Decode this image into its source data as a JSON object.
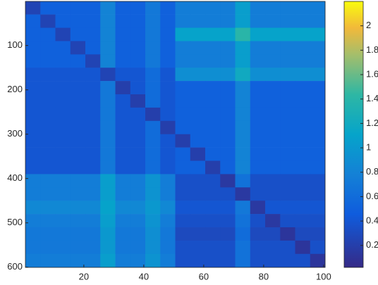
{
  "chart_data": {
    "type": "heatmap",
    "colormap": "parula",
    "x": [
      3,
      8,
      13,
      18,
      23,
      28,
      33,
      38,
      43,
      48,
      53,
      58,
      63,
      68,
      73,
      78,
      83,
      88,
      93,
      98
    ],
    "y": [
      15,
      45,
      75,
      105,
      135,
      165,
      195,
      225,
      255,
      285,
      315,
      345,
      375,
      405,
      435,
      465,
      495,
      525,
      555,
      585
    ],
    "values": [
      [
        0.25,
        0.5,
        0.5,
        0.5,
        0.5,
        0.8,
        0.5,
        0.5,
        0.7,
        0.5,
        0.75,
        0.75,
        0.75,
        0.75,
        1.05,
        0.75,
        0.75,
        0.75,
        0.75,
        0.75
      ],
      [
        0.5,
        0.25,
        0.5,
        0.5,
        0.5,
        0.8,
        0.5,
        0.5,
        0.7,
        0.5,
        0.75,
        0.75,
        0.75,
        0.75,
        1.05,
        0.75,
        0.75,
        0.75,
        0.75,
        0.75
      ],
      [
        0.5,
        0.5,
        0.25,
        0.5,
        0.5,
        0.8,
        0.5,
        0.5,
        0.7,
        0.5,
        1.1,
        1.1,
        1.1,
        1.1,
        1.4,
        1.1,
        1.1,
        1.1,
        1.1,
        1.1
      ],
      [
        0.5,
        0.5,
        0.5,
        0.25,
        0.5,
        0.8,
        0.5,
        0.5,
        0.7,
        0.5,
        0.75,
        0.75,
        0.75,
        0.75,
        1.05,
        0.75,
        0.75,
        0.75,
        0.75,
        0.75
      ],
      [
        0.5,
        0.5,
        0.5,
        0.5,
        0.25,
        0.8,
        0.5,
        0.5,
        0.7,
        0.5,
        0.75,
        0.75,
        0.75,
        0.75,
        1.05,
        0.75,
        0.75,
        0.75,
        0.75,
        0.75
      ],
      [
        0.4,
        0.4,
        0.4,
        0.4,
        0.4,
        0.25,
        0.4,
        0.4,
        0.6,
        0.4,
        0.9,
        0.9,
        0.9,
        0.9,
        1.2,
        0.9,
        0.9,
        0.9,
        0.9,
        0.9
      ],
      [
        0.4,
        0.4,
        0.4,
        0.4,
        0.4,
        0.7,
        0.2,
        0.4,
        0.6,
        0.4,
        0.5,
        0.5,
        0.5,
        0.5,
        0.8,
        0.5,
        0.5,
        0.5,
        0.5,
        0.5
      ],
      [
        0.4,
        0.4,
        0.4,
        0.4,
        0.4,
        0.7,
        0.4,
        0.2,
        0.6,
        0.4,
        0.5,
        0.5,
        0.5,
        0.5,
        0.8,
        0.5,
        0.5,
        0.5,
        0.5,
        0.5
      ],
      [
        0.4,
        0.4,
        0.4,
        0.4,
        0.4,
        0.7,
        0.4,
        0.4,
        0.2,
        0.4,
        0.5,
        0.5,
        0.5,
        0.5,
        0.8,
        0.5,
        0.5,
        0.5,
        0.5,
        0.5
      ],
      [
        0.4,
        0.4,
        0.4,
        0.4,
        0.4,
        0.7,
        0.4,
        0.4,
        0.6,
        0.2,
        0.5,
        0.5,
        0.5,
        0.5,
        0.8,
        0.5,
        0.5,
        0.5,
        0.5,
        0.5
      ],
      [
        0.4,
        0.4,
        0.4,
        0.4,
        0.4,
        0.7,
        0.4,
        0.4,
        0.6,
        0.4,
        0.2,
        0.5,
        0.5,
        0.5,
        0.8,
        0.5,
        0.5,
        0.5,
        0.5,
        0.5
      ],
      [
        0.4,
        0.4,
        0.4,
        0.4,
        0.4,
        0.7,
        0.4,
        0.4,
        0.6,
        0.4,
        0.5,
        0.2,
        0.5,
        0.5,
        0.8,
        0.5,
        0.5,
        0.5,
        0.5,
        0.5
      ],
      [
        0.4,
        0.4,
        0.4,
        0.4,
        0.4,
        0.7,
        0.4,
        0.4,
        0.6,
        0.4,
        0.5,
        0.5,
        0.2,
        0.5,
        0.8,
        0.5,
        0.5,
        0.5,
        0.5,
        0.5
      ],
      [
        0.75,
        0.75,
        0.75,
        0.75,
        0.75,
        1.05,
        0.75,
        0.75,
        0.95,
        0.75,
        0.35,
        0.35,
        0.35,
        0.15,
        0.65,
        0.35,
        0.35,
        0.35,
        0.35,
        0.35
      ],
      [
        0.75,
        0.75,
        0.75,
        0.75,
        0.75,
        1.05,
        0.75,
        0.75,
        0.95,
        0.75,
        0.35,
        0.35,
        0.35,
        0.35,
        0.15,
        0.35,
        0.35,
        0.35,
        0.35,
        0.35
      ],
      [
        0.85,
        0.85,
        0.85,
        0.85,
        0.85,
        1.1,
        0.85,
        0.85,
        1.0,
        0.85,
        0.4,
        0.4,
        0.4,
        0.4,
        0.7,
        0.15,
        0.4,
        0.4,
        0.4,
        0.4
      ],
      [
        0.75,
        0.75,
        0.75,
        0.75,
        0.75,
        1.05,
        0.75,
        0.75,
        0.95,
        0.75,
        0.35,
        0.35,
        0.35,
        0.35,
        0.65,
        0.35,
        0.15,
        0.35,
        0.35,
        0.35
      ],
      [
        0.7,
        0.7,
        0.7,
        0.7,
        0.7,
        1.0,
        0.7,
        0.7,
        0.9,
        0.7,
        0.3,
        0.3,
        0.3,
        0.3,
        0.6,
        0.3,
        0.3,
        0.12,
        0.3,
        0.3
      ],
      [
        0.7,
        0.7,
        0.7,
        0.7,
        0.7,
        1.0,
        0.7,
        0.7,
        0.9,
        0.7,
        0.35,
        0.35,
        0.35,
        0.35,
        0.65,
        0.35,
        0.35,
        0.35,
        0.12,
        0.35
      ],
      [
        0.75,
        0.75,
        0.75,
        0.75,
        0.75,
        1.05,
        0.75,
        0.75,
        0.95,
        0.75,
        0.35,
        0.35,
        0.35,
        0.35,
        0.65,
        0.35,
        0.35,
        0.35,
        0.35,
        0.12
      ]
    ],
    "xlim": [
      0.5,
      100.5
    ],
    "xticks": [
      20,
      40,
      60,
      80,
      100
    ],
    "ylim": [
      0.5,
      600.5
    ],
    "yticks": [
      100,
      200,
      300,
      400,
      500,
      600
    ],
    "yreverse": true,
    "clim": [
      0.02,
      2.2
    ],
    "cticks": [
      0.2,
      0.4,
      0.6,
      0.8,
      1,
      1.2,
      1.4,
      1.6,
      1.8,
      2
    ]
  }
}
